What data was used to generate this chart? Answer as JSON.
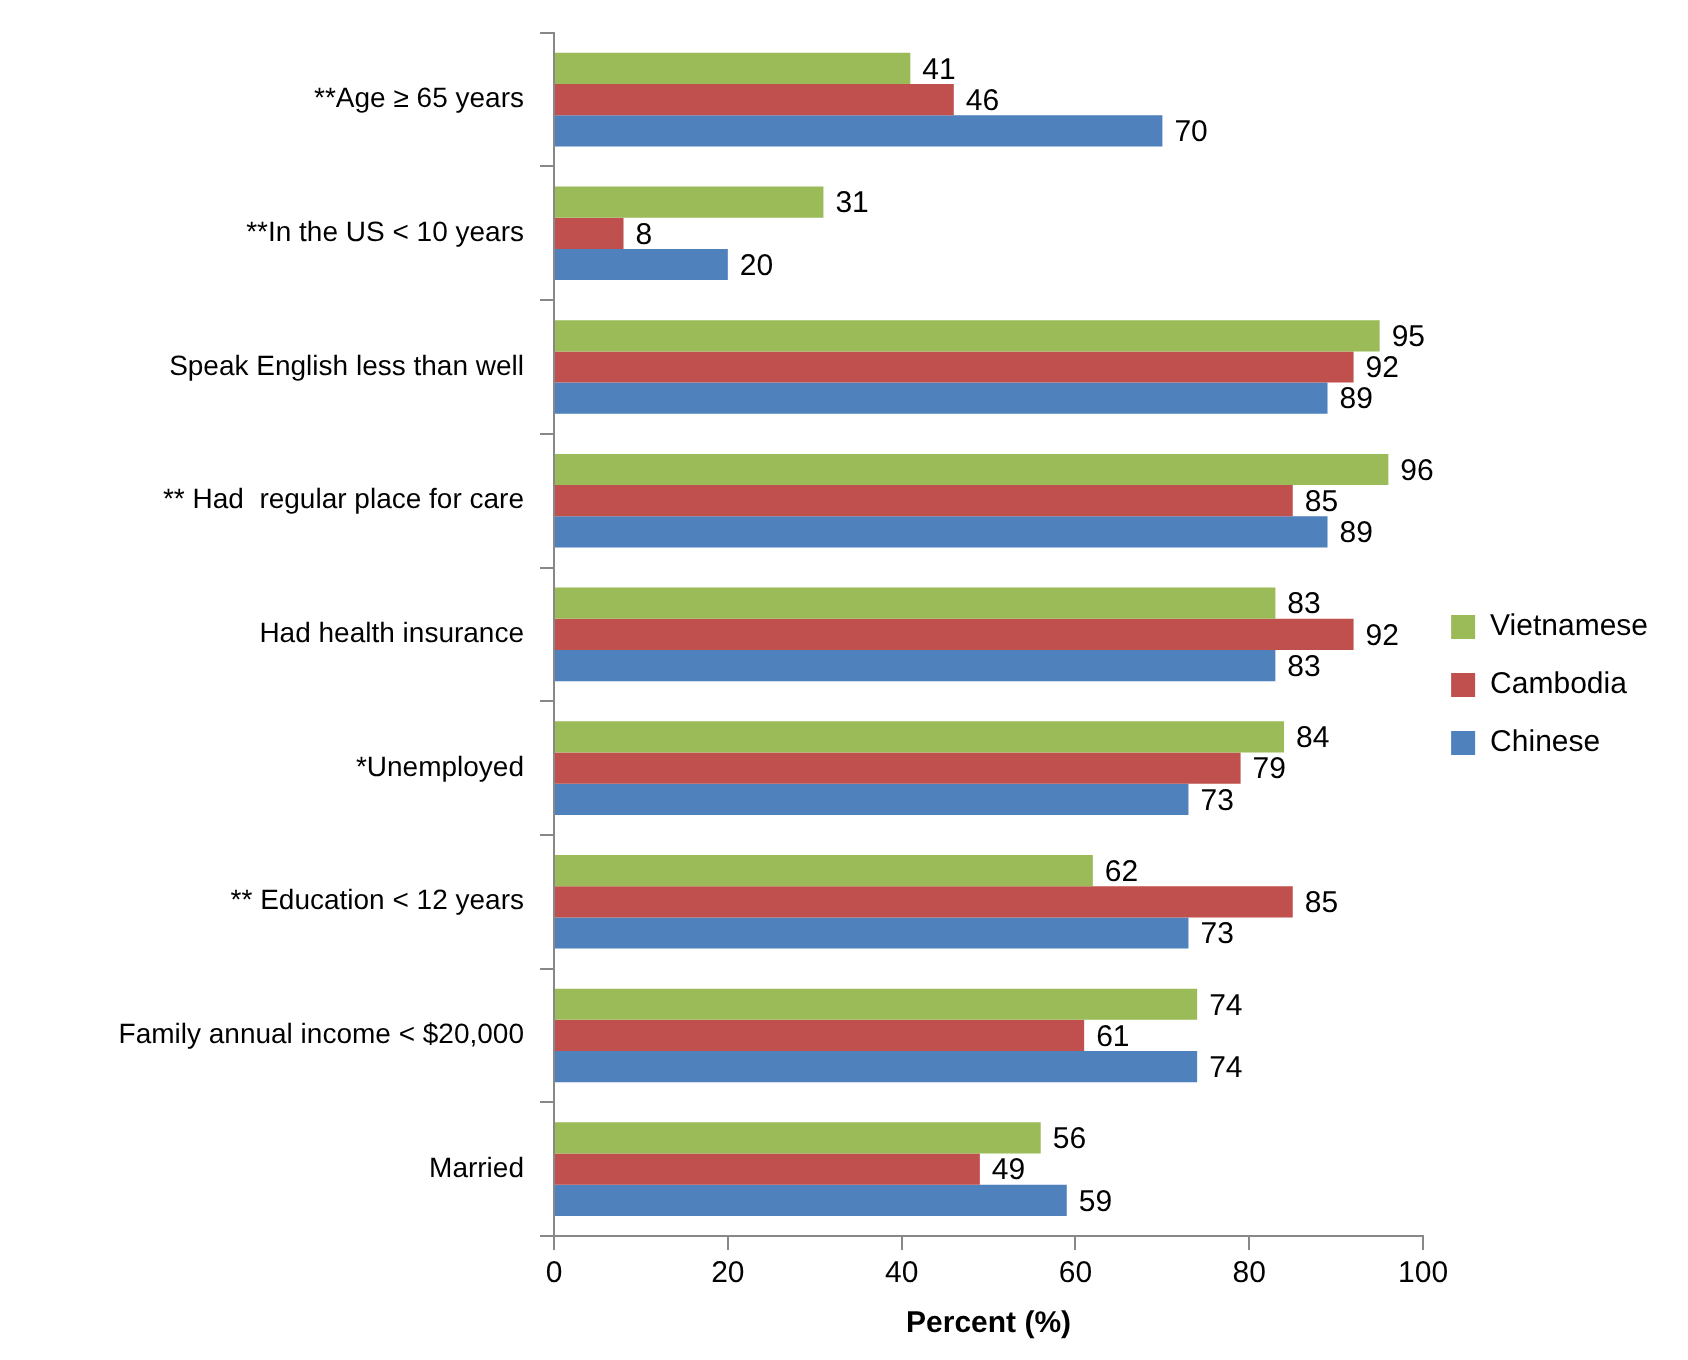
{
  "chart_data": {
    "type": "bar",
    "orientation": "horizontal",
    "xlabel": "Percent (%)",
    "categories": [
      "**Age ≥ 65 years",
      "**In the US < 10 years",
      "Speak English less than well",
      "** Had  regular place for care",
      "Had health insurance",
      "*Unemployed",
      "** Education < 12 years",
      "Family annual income < $20,000",
      "Married"
    ],
    "series": [
      {
        "name": "Vietnamese",
        "color": "#9bbb59",
        "values": [
          41,
          31,
          95,
          96,
          83,
          84,
          62,
          74,
          56
        ]
      },
      {
        "name": "Cambodia",
        "color": "#c0504d",
        "values": [
          46,
          8,
          92,
          85,
          92,
          79,
          85,
          61,
          49
        ]
      },
      {
        "name": "Chinese",
        "color": "#4f81bd",
        "values": [
          70,
          20,
          89,
          89,
          83,
          73,
          73,
          74,
          59
        ]
      }
    ],
    "xlim": [
      0,
      100
    ],
    "xticks": [
      0,
      20,
      40,
      60,
      80,
      100
    ],
    "grid": false,
    "legend": "right",
    "data_labels": true
  }
}
